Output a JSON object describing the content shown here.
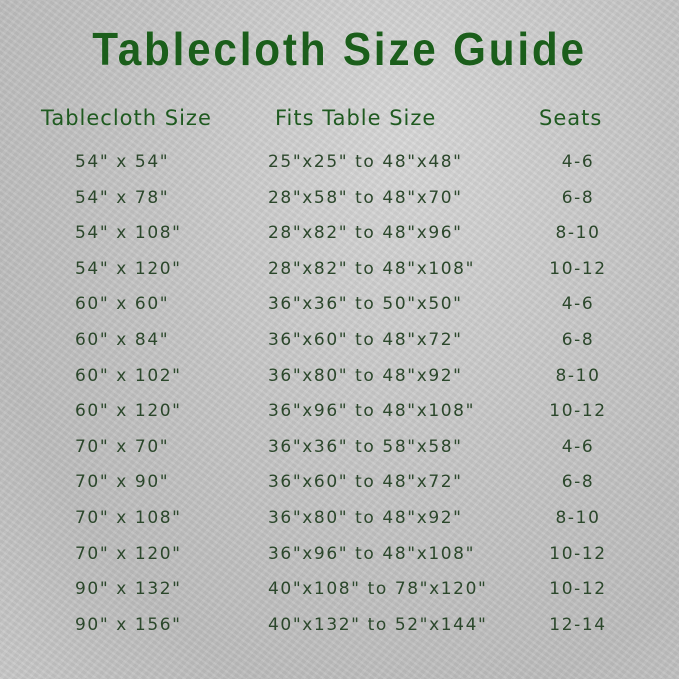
{
  "title": "Tablecloth Size Guide",
  "headers": [
    "Tablecloth Size",
    "Fits Table Size",
    "Seats"
  ],
  "rows": [
    {
      "size": "54\" x 54\"",
      "fits": "25\"x25\" to 48\"x48\"",
      "seats": "4-6"
    },
    {
      "size": "54\" x 78\"",
      "fits": "28\"x58\" to 48\"x70\"",
      "seats": "6-8"
    },
    {
      "size": "54\" x 108\"",
      "fits": "28\"x82\" to 48\"x96\"",
      "seats": "8-10"
    },
    {
      "size": "54\" x 120\"",
      "fits": "28\"x82\" to 48\"x108\"",
      "seats": "10-12"
    },
    {
      "size": "60\" x 60\"",
      "fits": "36\"x36\" to 50\"x50\"",
      "seats": "4-6"
    },
    {
      "size": "60\" x 84\"",
      "fits": "36\"x60\" to 48\"x72\"",
      "seats": "6-8"
    },
    {
      "size": "60\" x 102\"",
      "fits": "36\"x80\" to 48\"x92\"",
      "seats": "8-10"
    },
    {
      "size": "60\" x 120\"",
      "fits": "36\"x96\" to 48\"x108\"",
      "seats": "10-12"
    },
    {
      "size": "70\" x 70\"",
      "fits": "36\"x36\" to 58\"x58\"",
      "seats": "4-6"
    },
    {
      "size": "70\" x 90\"",
      "fits": "36\"x60\" to 48\"x72\"",
      "seats": "6-8"
    },
    {
      "size": "70\" x 108\"",
      "fits": "36\"x80\" to 48\"x92\"",
      "seats": "8-10"
    },
    {
      "size": "70\" x 120\"",
      "fits": "36\"x96\" to 48\"x108\"",
      "seats": "10-12"
    },
    {
      "size": "90\" x 132\"",
      "fits": "40\"x108\" to 78\"x120\"",
      "seats": "10-12"
    },
    {
      "size": "90\" x 156\"",
      "fits": "40\"x132\" to 52\"x144\"",
      "seats": "12-14"
    }
  ],
  "colors": {
    "title": "#1b5e1b",
    "header": "#1f5a20",
    "body_text": "#2b472b",
    "background": "#c8c8c8"
  }
}
